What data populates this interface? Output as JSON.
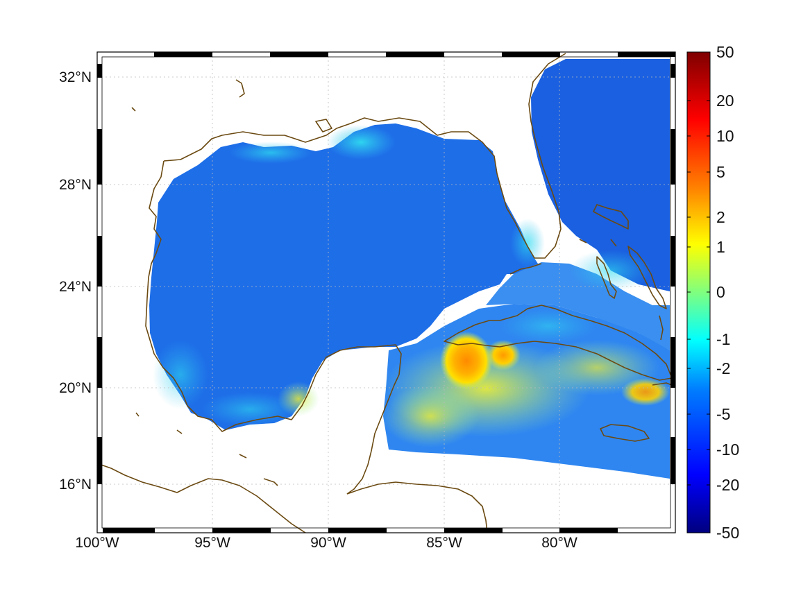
{
  "map": {
    "lon_labels": [
      "100°W",
      "95°W",
      "90°W",
      "85°W",
      "80°W"
    ],
    "lat_labels": [
      "32°N",
      "28°N",
      "24°N",
      "20°N",
      "16°N"
    ]
  },
  "colorbar": {
    "tick_labels": [
      "50",
      "20",
      "10",
      "5",
      "2",
      "1",
      "0",
      "-1",
      "-2",
      "-5",
      "-10",
      "-20",
      "-50"
    ],
    "colors": [
      "#00007f",
      "#0000ff",
      "#007fff",
      "#00ffff",
      "#7fff7f",
      "#ffff00",
      "#ff7f00",
      "#ff0000",
      "#7f0000"
    ]
  },
  "colors": {
    "coastline": "#6b4a12",
    "frame_dark": "#000000",
    "frame_light": "#ffffff"
  }
}
